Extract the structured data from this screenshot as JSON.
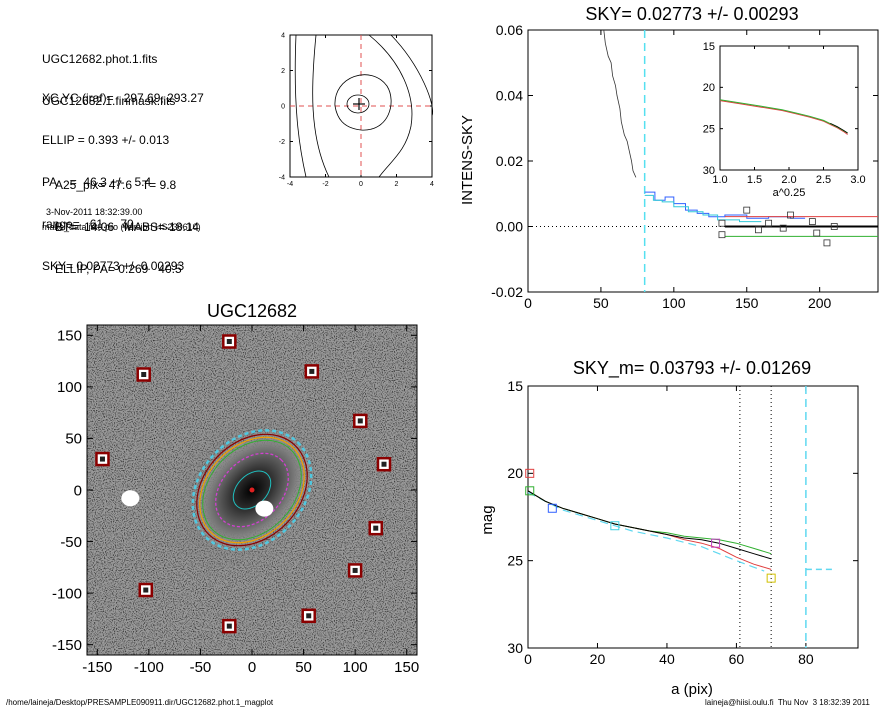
{
  "info": {
    "lines_a": [
      "UGC12682.phot.1.fits",
      "UGC12682.1.finmask.fits"
    ],
    "lines_b": [
      "XC,YC (iraf)=   297.69, 293.27",
      "ELLIP = 0.393 +/- 0.013",
      "PA    =  46.3 +/-   5.4",
      "range=   61.-   70.",
      "SKY= 0.02773 +/- 0.00293"
    ],
    "lines_c": [
      "A25_pix= 47.6   T= 9.8",
      "BT=  14.06   MABS=-18.14",
      "ELLIP, PA= 0.269   40.5"
    ],
    "date": "3-Nov-2011 18:32:39.00",
    "program": "make_datalist0.pro (version HS230610)"
  },
  "footer": {
    "path": "/home/laineja/Desktop/PRESAMPLE090911.dir/UGC12682.phot.1_magplot",
    "user": "laineja@hiisi.oulu.fi  Thu Nov  3 18:32:39 2011"
  },
  "colors": {
    "sky_dashed": "#55e0f0",
    "profile_blue": "#3060ff",
    "profile_red": "#e04040",
    "profile_green": "#30b030",
    "mag_dashed": "#60d8f0",
    "marker_red": "#8b0000",
    "contour_cyan": "#20c0c0",
    "contour_magenta": "#d040d0",
    "contour_orange": "#f0a000"
  },
  "chart_data": [
    {
      "id": "contour",
      "type": "contour",
      "xlim": [
        -4,
        4
      ],
      "ylim": [
        -4,
        4
      ],
      "xticks": [
        "-4",
        "-2",
        "0",
        "2",
        "4"
      ],
      "yticks": [
        "-4",
        "-2",
        "0",
        "2",
        "4"
      ],
      "center": [
        0,
        0
      ]
    },
    {
      "id": "sky",
      "type": "line",
      "title": "SKY= 0.02773 +/- 0.00293",
      "ylabel": "INTENS-SKY",
      "xlim": [
        0,
        240
      ],
      "ylim": [
        -0.02,
        0.06
      ],
      "xticks": [
        "0",
        "50",
        "100",
        "150",
        "200"
      ],
      "yticks": [
        "-0.02",
        "0.00",
        "0.02",
        "0.04",
        "0.06"
      ],
      "vline_x": 80,
      "profile": [
        [
          52,
          0.06
        ],
        [
          53,
          0.056
        ],
        [
          55,
          0.052
        ],
        [
          57,
          0.05
        ],
        [
          58,
          0.046
        ],
        [
          60,
          0.043
        ],
        [
          61,
          0.04
        ],
        [
          63,
          0.036
        ],
        [
          64,
          0.032
        ],
        [
          66,
          0.028
        ],
        [
          68,
          0.026
        ],
        [
          69,
          0.024
        ],
        [
          71,
          0.02
        ],
        [
          72,
          0.017
        ],
        [
          74,
          0.015
        ]
      ],
      "step_blue": [
        [
          80,
          0.0105
        ],
        [
          87,
          0.0105
        ],
        [
          87,
          0.008
        ],
        [
          94,
          0.008
        ],
        [
          94,
          0.009
        ],
        [
          100,
          0.009
        ],
        [
          100,
          0.007
        ],
        [
          108,
          0.007
        ],
        [
          108,
          0.005
        ],
        [
          116,
          0.005
        ],
        [
          116,
          0.004
        ],
        [
          124,
          0.004
        ],
        [
          124,
          0.003
        ],
        [
          135,
          0.003
        ],
        [
          135,
          0.0035
        ],
        [
          150,
          0.0035
        ],
        [
          150,
          0.0025
        ],
        [
          165,
          0.0025
        ],
        [
          165,
          0.003
        ],
        [
          180,
          0.003
        ],
        [
          180,
          0.0025
        ],
        [
          190,
          0.0025
        ]
      ],
      "step_cyan": [
        [
          80,
          0.0095
        ],
        [
          86,
          0.0095
        ],
        [
          86,
          0.008
        ],
        [
          92,
          0.008
        ],
        [
          92,
          0.0075
        ],
        [
          100,
          0.0075
        ],
        [
          100,
          0.006
        ],
        [
          110,
          0.006
        ],
        [
          110,
          0.0045
        ],
        [
          120,
          0.0045
        ],
        [
          120,
          0.0035
        ],
        [
          130,
          0.0035
        ],
        [
          130,
          0.002
        ],
        [
          145,
          0.002
        ],
        [
          145,
          0.0015
        ],
        [
          160,
          0.0015
        ]
      ],
      "sky_red": 0.003,
      "sky_black": 0.0,
      "sky_green": -0.003,
      "level_range_x": [
        135,
        240
      ],
      "squares": [
        [
          133,
          0.001
        ],
        [
          133,
          -0.0025
        ],
        [
          150,
          0.005
        ],
        [
          158,
          -0.001
        ],
        [
          165,
          0.001
        ],
        [
          175,
          -0.0005
        ],
        [
          180,
          0.0035
        ],
        [
          195,
          0.0015
        ],
        [
          198,
          -0.002
        ],
        [
          205,
          -0.005
        ],
        [
          210,
          0.0
        ]
      ],
      "inset": {
        "xlabel": "a^0.25",
        "xlim": [
          1.0,
          3.0
        ],
        "ylim": [
          30,
          15
        ],
        "xticks": [
          "1.0",
          "1.5",
          "2.0",
          "2.5",
          "3.0"
        ],
        "yticks": [
          "15",
          "20",
          "25",
          "30"
        ],
        "red": [
          [
            1.0,
            21.6
          ],
          [
            1.3,
            22.0
          ],
          [
            1.6,
            22.4
          ],
          [
            1.9,
            22.8
          ],
          [
            2.1,
            23.2
          ],
          [
            2.3,
            23.6
          ],
          [
            2.5,
            24.1
          ],
          [
            2.6,
            24.5
          ],
          [
            2.7,
            24.9
          ],
          [
            2.8,
            25.4
          ],
          [
            2.85,
            25.7
          ]
        ],
        "green": [
          [
            1.0,
            21.5
          ],
          [
            1.3,
            21.9
          ],
          [
            1.6,
            22.3
          ],
          [
            1.9,
            22.7
          ],
          [
            2.1,
            23.1
          ],
          [
            2.3,
            23.5
          ],
          [
            2.5,
            24.0
          ],
          [
            2.6,
            24.4
          ],
          [
            2.7,
            24.8
          ],
          [
            2.8,
            25.3
          ],
          [
            2.85,
            25.5
          ]
        ]
      }
    },
    {
      "id": "image",
      "type": "image",
      "title": "UGC12682",
      "xlim": [
        -160,
        160
      ],
      "ylim": [
        -160,
        160
      ],
      "xticks": [
        "-150",
        "-100",
        "-50",
        "0",
        "50",
        "100",
        "150"
      ],
      "yticks": [
        "-150",
        "-100",
        "-50",
        "0",
        "50",
        "100",
        "150"
      ],
      "markers": [
        [
          -22,
          144
        ],
        [
          -105,
          112
        ],
        [
          58,
          115
        ],
        [
          105,
          67
        ],
        [
          -145,
          30
        ],
        [
          128,
          25
        ],
        [
          120,
          -37
        ],
        [
          100,
          -78
        ],
        [
          -103,
          -97
        ],
        [
          55,
          -122
        ],
        [
          -22,
          -132
        ]
      ],
      "blobs": [
        [
          -118,
          -8
        ],
        [
          12,
          -18
        ]
      ],
      "ellipse_pa": 46
    },
    {
      "id": "mag",
      "type": "line",
      "title": "SKY_m=  0.03793 +/- 0.01269",
      "xlabel": "a (pix)",
      "ylabel": "mag",
      "xlim": [
        0,
        95
      ],
      "ylim": [
        30,
        15
      ],
      "xticks": [
        "0",
        "20",
        "40",
        "60",
        "80"
      ],
      "yticks": [
        "15",
        "20",
        "25",
        "30"
      ],
      "vlines_dotted": [
        61,
        70
      ],
      "vline_dashed": 80,
      "black": [
        [
          0,
          21.0
        ],
        [
          5,
          21.6
        ],
        [
          10,
          22.0
        ],
        [
          15,
          22.3
        ],
        [
          20,
          22.6
        ],
        [
          25,
          22.9
        ],
        [
          30,
          23.1
        ],
        [
          35,
          23.3
        ],
        [
          40,
          23.5
        ],
        [
          45,
          23.7
        ],
        [
          50,
          23.8
        ],
        [
          55,
          24.0
        ],
        [
          60,
          24.3
        ],
        [
          65,
          24.6
        ],
        [
          70,
          24.9
        ]
      ],
      "red": [
        [
          0,
          21.0
        ],
        [
          5,
          21.6
        ],
        [
          10,
          22.0
        ],
        [
          15,
          22.3
        ],
        [
          20,
          22.6
        ],
        [
          25,
          22.9
        ],
        [
          30,
          23.1
        ],
        [
          35,
          23.3
        ],
        [
          40,
          23.5
        ],
        [
          45,
          23.8
        ],
        [
          50,
          24.0
        ],
        [
          55,
          24.3
        ],
        [
          60,
          24.8
        ],
        [
          65,
          25.2
        ],
        [
          70,
          25.5
        ]
      ],
      "green": [
        [
          0,
          21.0
        ],
        [
          5,
          21.6
        ],
        [
          10,
          22.0
        ],
        [
          15,
          22.3
        ],
        [
          20,
          22.6
        ],
        [
          25,
          22.9
        ],
        [
          30,
          23.1
        ],
        [
          35,
          23.3
        ],
        [
          40,
          23.4
        ],
        [
          45,
          23.6
        ],
        [
          50,
          23.7
        ],
        [
          55,
          23.8
        ],
        [
          60,
          24.0
        ],
        [
          65,
          24.3
        ],
        [
          70,
          24.6
        ]
      ],
      "cyan_dashed": [
        [
          0,
          21.1
        ],
        [
          10,
          22.1
        ],
        [
          20,
          22.7
        ],
        [
          30,
          23.3
        ],
        [
          40,
          23.7
        ],
        [
          50,
          24.2
        ],
        [
          55,
          24.6
        ],
        [
          60,
          25.0
        ],
        [
          64,
          25.3
        ],
        [
          68,
          25.6
        ]
      ],
      "cyan_flat": [
        [
          80,
          25.5
        ],
        [
          88,
          25.5
        ]
      ],
      "squares": [
        {
          "x": 0.5,
          "y": 20.0,
          "c": "#e04040"
        },
        {
          "x": 0.5,
          "y": 21.0,
          "c": "#30b030"
        },
        {
          "x": 7,
          "y": 22.0,
          "c": "#3060ff"
        },
        {
          "x": 25,
          "y": 23.0,
          "c": "#40d0e0"
        },
        {
          "x": 54,
          "y": 24.0,
          "c": "#c040c0"
        },
        {
          "x": 70,
          "y": 26.0,
          "c": "#d0c000"
        }
      ]
    }
  ]
}
